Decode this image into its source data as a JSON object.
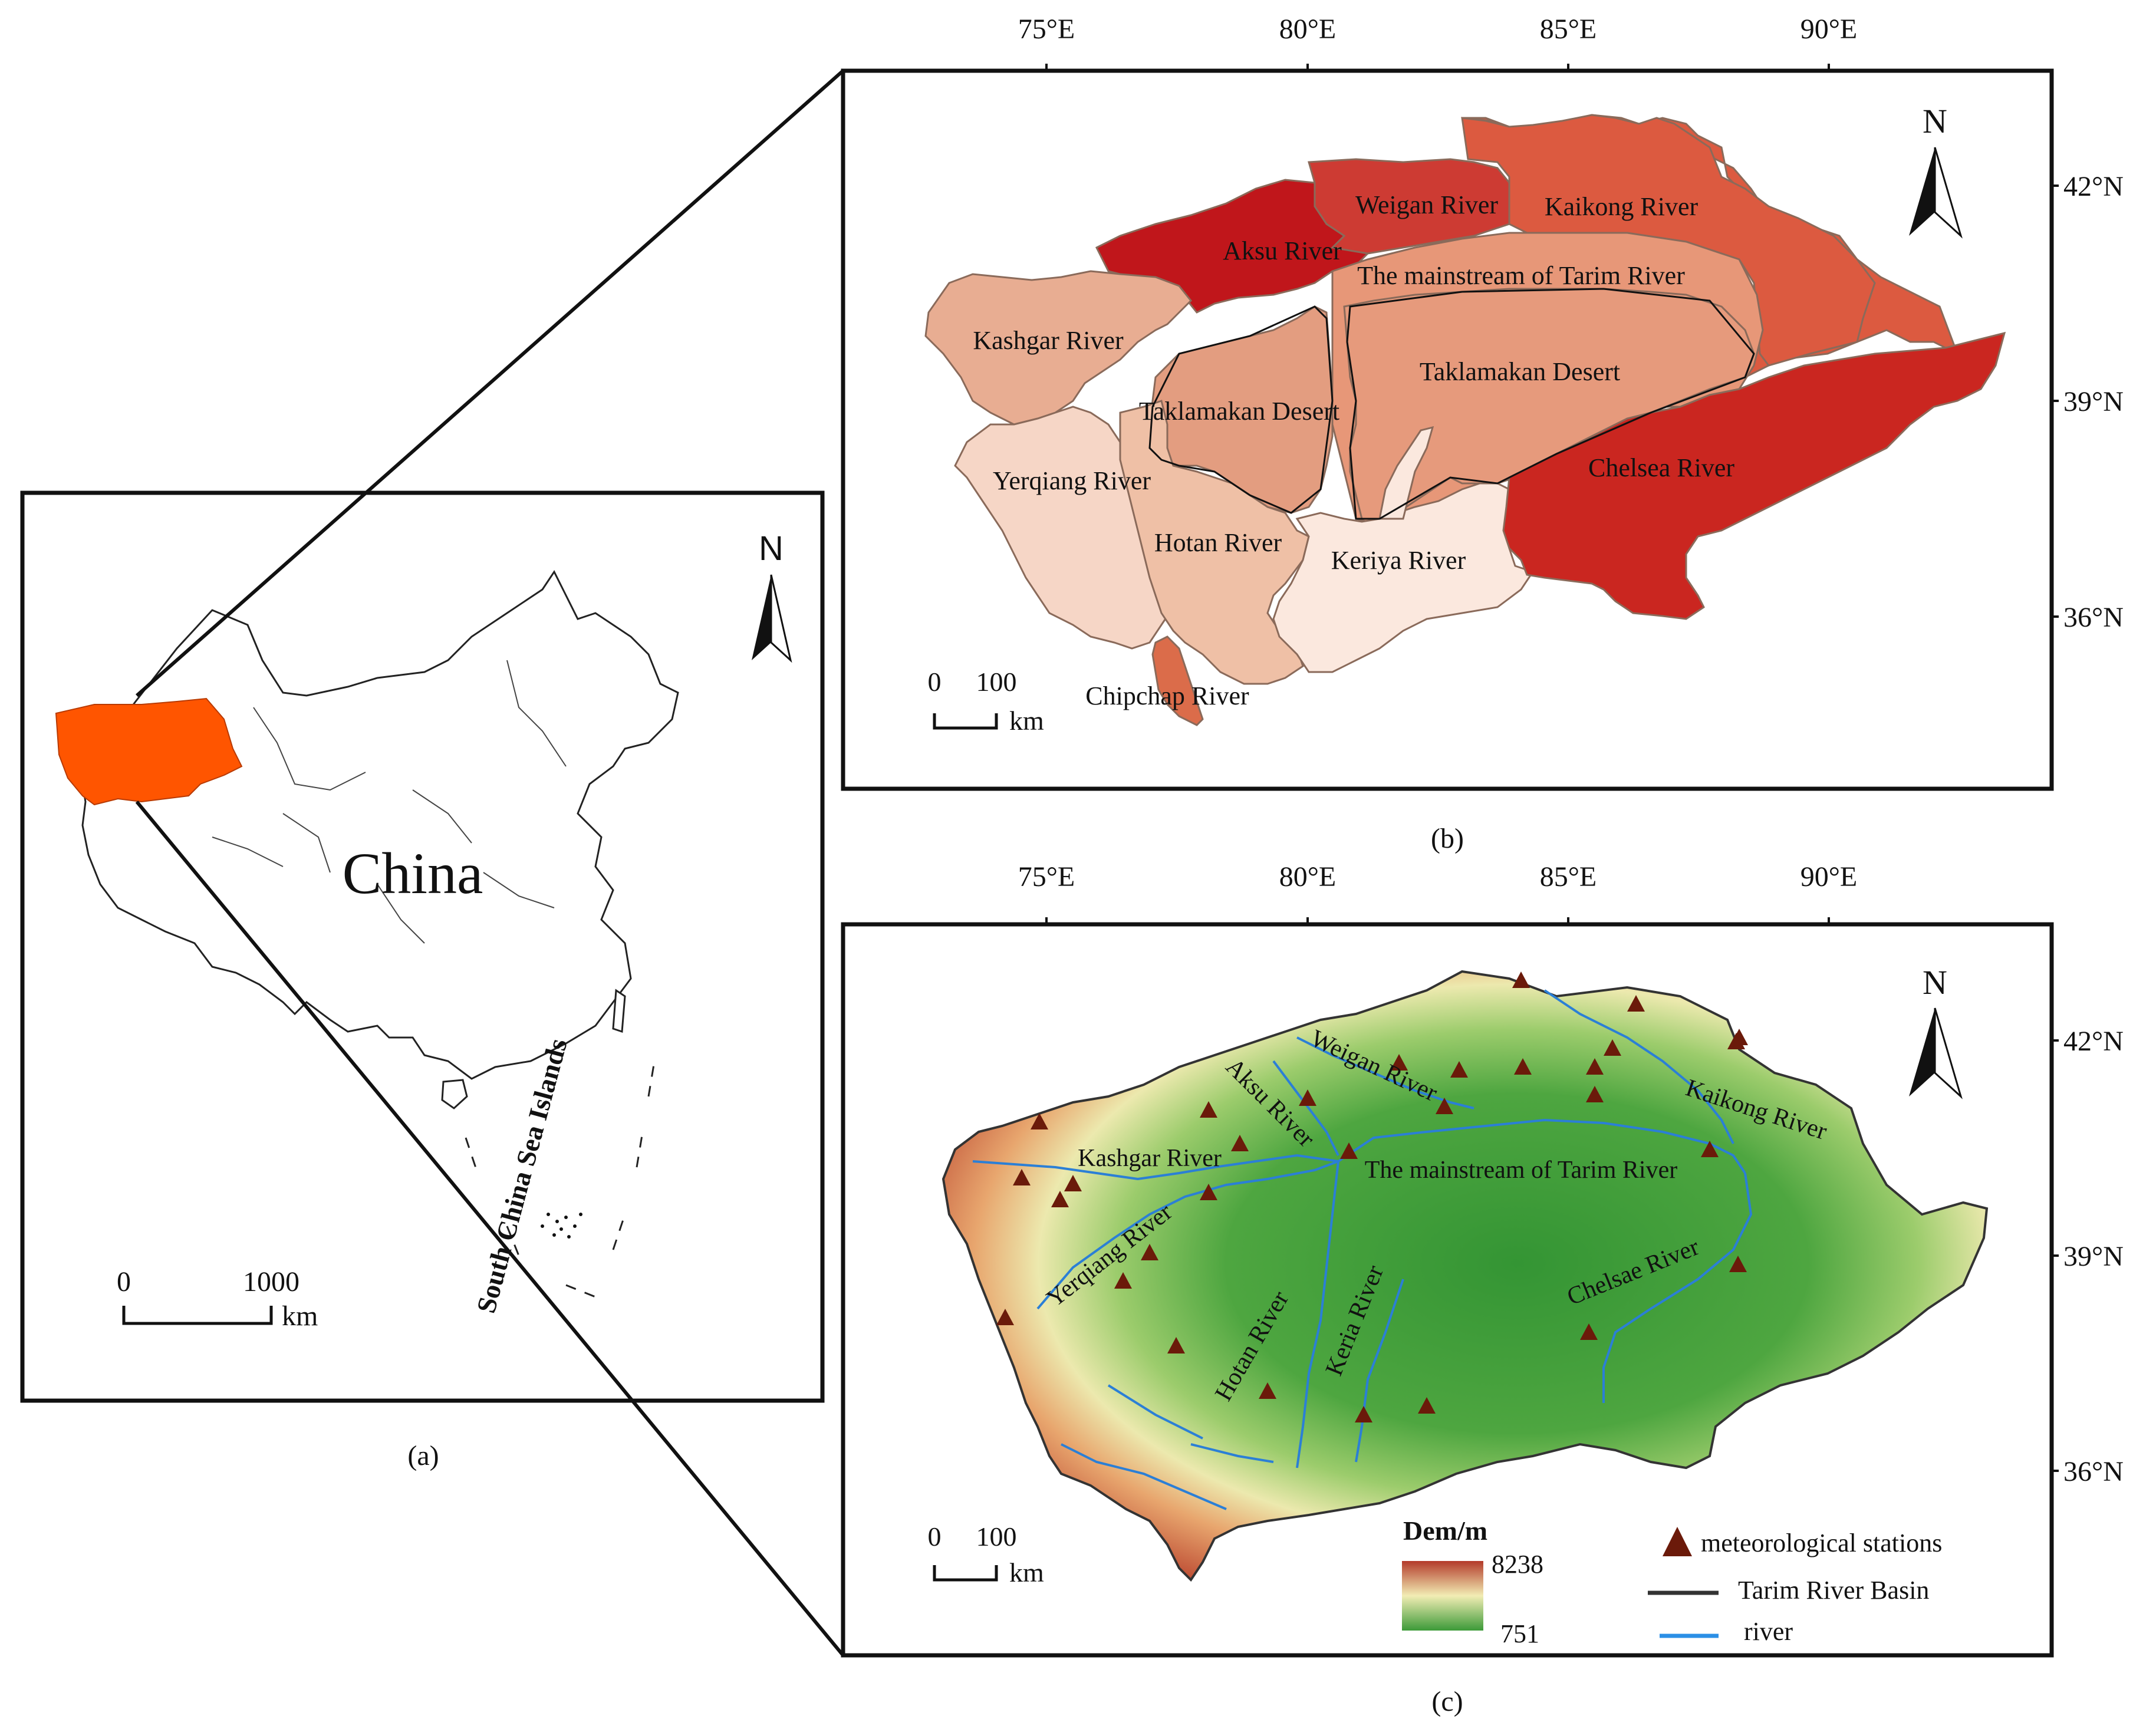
{
  "panel_a": {
    "caption": "(a)",
    "country_label": "China",
    "islands_label": "South China Sea Islands",
    "north": "N",
    "scale": {
      "zero": "0",
      "max": "1000",
      "unit": "km"
    },
    "highlight_color": "#ff5500"
  },
  "panel_b": {
    "caption": "(b)",
    "north": "N",
    "scale": {
      "zero": "0",
      "max": "100",
      "unit": "km"
    },
    "lon_labels": [
      "75°E",
      "80°E",
      "85°E",
      "90°E"
    ],
    "lat_labels": [
      "42°N",
      "39°N",
      "36°N"
    ],
    "regions": {
      "kaikong": {
        "label": "Kaikong River",
        "color": "#dc5a40"
      },
      "weigan": {
        "label": "Weigan River",
        "color": "#cd3b33"
      },
      "aksu": {
        "label": "Aksu River",
        "color": "#c0161b"
      },
      "mainstream": {
        "label": "The mainstream of Tarim River",
        "color": "#e79778"
      },
      "kashgar": {
        "label": "Kashgar River",
        "color": "#e8ad92"
      },
      "yerqiang": {
        "label": "Yerqiang River",
        "color": "#f6d6c6"
      },
      "desert_west": {
        "label": "Taklamakan Desert",
        "color": "#e39d80"
      },
      "desert_east": {
        "label": "Taklamakan Desert",
        "color": "#e69a7c"
      },
      "hotan": {
        "label": "Hotan River",
        "color": "#efc0a6"
      },
      "keriya": {
        "label": "Keriya River",
        "color": "#fbe8de"
      },
      "chelsea": {
        "label": "Chelsea River",
        "color": "#ca2620"
      },
      "chipchap": {
        "label": "Chipchap River",
        "color": "#db6c4a"
      }
    }
  },
  "panel_c": {
    "caption": "(c)",
    "north": "N",
    "scale": {
      "zero": "0",
      "max": "100",
      "unit": "km"
    },
    "lon_labels": [
      "75°E",
      "80°E",
      "85°E",
      "90°E"
    ],
    "lat_labels": [
      "42°N",
      "39°N",
      "36°N"
    ],
    "river_labels": {
      "aksu": "Aksu River",
      "weigan": "Weigan River",
      "kashgar": "Kashgar River",
      "mainstream": "The mainstream of Tarim River",
      "kaikong": "Kaikong River",
      "yerqiang": "Yerqiang River",
      "hotan": "Hotan River",
      "keria": "Keria River",
      "chelsae": "Chelsae River"
    },
    "legend": {
      "dem_title": "Dem/m",
      "dem_max": "8238",
      "dem_min": "751",
      "stations": "meteorological stations",
      "basin": "Tarim River Basin",
      "river": "river"
    },
    "colors": {
      "high": "#b33a2a",
      "mid": "#f2edb4",
      "low": "#3c9a38",
      "river": "#2b7fd6",
      "station": "#6b1a0a"
    }
  }
}
